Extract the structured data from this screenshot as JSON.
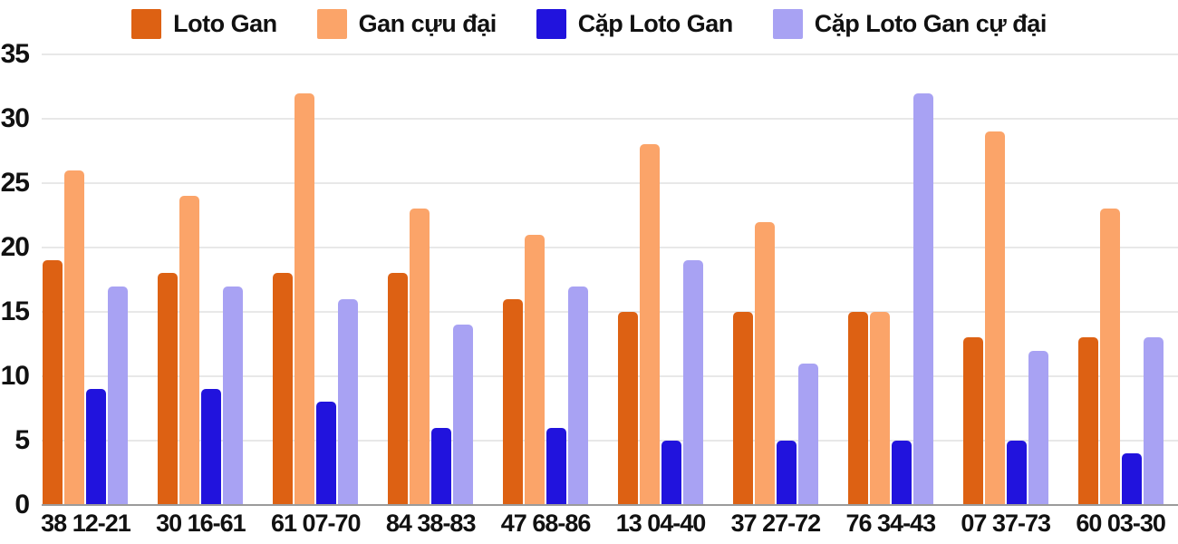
{
  "chart_data": {
    "type": "bar",
    "title": "",
    "xlabel": "",
    "ylabel": "",
    "categories": [
      "38 12-21",
      "30 16-61",
      "61 07-70",
      "84 38-83",
      "47 68-86",
      "13 04-40",
      "37 27-72",
      "76 34-43",
      "07 37-73",
      "60 03-30"
    ],
    "series": [
      {
        "name": "Loto Gan",
        "color": "#dd6113",
        "values": [
          19,
          18,
          18,
          18,
          16,
          15,
          15,
          15,
          13,
          13
        ]
      },
      {
        "name": "Gan cựu đại",
        "color": "#fba469",
        "values": [
          26,
          24,
          32,
          23,
          21,
          28,
          22,
          15,
          29,
          23
        ]
      },
      {
        "name": "Cặp Loto Gan",
        "color": "#2113dd",
        "values": [
          9,
          9,
          8,
          6,
          6,
          5,
          5,
          5,
          5,
          4
        ]
      },
      {
        "name": "Cặp Loto Gan cự đại",
        "color": "#a8a2f3",
        "values": [
          17,
          17,
          16,
          14,
          17,
          19,
          11,
          32,
          12,
          13
        ]
      }
    ],
    "ylim": [
      0,
      35
    ],
    "ytick_step": 5,
    "yticks": [
      0,
      5,
      10,
      15,
      20,
      25,
      30,
      35
    ],
    "grid": true,
    "legend_position": "top",
    "style": {
      "background": "#ffffff",
      "gridline_color": "#e8e8e8",
      "axis_line_color": "#9b9b9b",
      "text_color": "#111111"
    }
  }
}
